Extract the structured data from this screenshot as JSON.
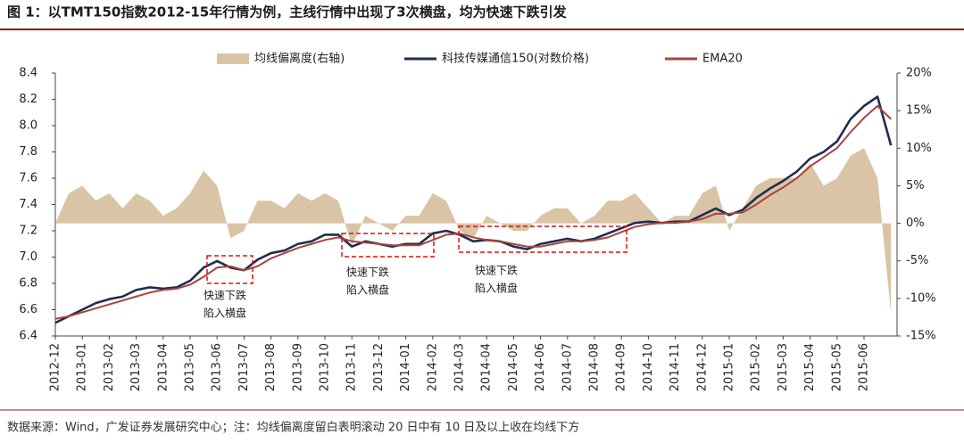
{
  "chart_data": {
    "type": "line",
    "title": "图 1：以TMT150指数2012-15年行情为例，主线行情中出现了3次横盘，均为快速下跌引发",
    "source": "数据来源：Wind，广发证券发展研究中心；注：均线偏离度留白表明滚动 20 日中有 10 日及以上收在均线下方",
    "categories": [
      "2012-12",
      null,
      "2013-01",
      null,
      "2013-02",
      null,
      "2013-03",
      null,
      "2013-04",
      null,
      "2013-05",
      null,
      "2013-06",
      null,
      "2013-07",
      null,
      "2013-08",
      null,
      "2013-09",
      null,
      "2013-10",
      null,
      "2013-11",
      null,
      "2013-12",
      null,
      "2014-01",
      null,
      "2014-02",
      null,
      "2014-03",
      null,
      "2014-04",
      null,
      "2014-05",
      null,
      "2014-06",
      null,
      "2014-07",
      null,
      "2014-08",
      null,
      "2014-09",
      null,
      "2014-10",
      null,
      "2014-11",
      null,
      "2014-12",
      null,
      "2015-01",
      null,
      "2015-02",
      null,
      "2015-03",
      null,
      "2015-04",
      null,
      "2015-05",
      null,
      "2015-06",
      null,
      null
    ],
    "series": [
      {
        "name": "均线偏离度(右轴)",
        "type": "area",
        "axis": "y2",
        "color": "#d9c4a5",
        "values": [
          0,
          4,
          5,
          3,
          4,
          2,
          4,
          3,
          1,
          2,
          4,
          7,
          5,
          -2,
          -1,
          3,
          3,
          2,
          4,
          3,
          4,
          3,
          -3,
          1,
          0,
          -1,
          1,
          1,
          4,
          3,
          -1,
          -2,
          1,
          0,
          -1,
          -1,
          1,
          2,
          2,
          0,
          1,
          3,
          3,
          4,
          2,
          0,
          1,
          1,
          4,
          5,
          -1,
          2,
          5,
          6,
          6,
          6,
          8,
          5,
          6,
          9,
          10,
          6,
          -12
        ]
      },
      {
        "name": "科技传媒通信150(对数价格)",
        "type": "line",
        "color": "#1f2d4e",
        "values": [
          6.5,
          6.55,
          6.6,
          6.65,
          6.68,
          6.7,
          6.75,
          6.77,
          6.76,
          6.77,
          6.82,
          6.92,
          6.97,
          6.92,
          6.9,
          6.98,
          7.03,
          7.05,
          7.1,
          7.12,
          7.17,
          7.17,
          7.08,
          7.12,
          7.1,
          7.08,
          7.1,
          7.1,
          7.18,
          7.2,
          7.17,
          7.12,
          7.13,
          7.12,
          7.08,
          7.06,
          7.1,
          7.12,
          7.14,
          7.12,
          7.14,
          7.18,
          7.22,
          7.26,
          7.27,
          7.26,
          7.27,
          7.27,
          7.32,
          7.37,
          7.32,
          7.36,
          7.45,
          7.52,
          7.58,
          7.65,
          7.75,
          7.8,
          7.88,
          8.05,
          8.15,
          8.22,
          7.85
        ]
      },
      {
        "name": "EMA20",
        "type": "line",
        "color": "#a8443d",
        "values": [
          6.53,
          6.55,
          6.58,
          6.61,
          6.64,
          6.67,
          6.7,
          6.73,
          6.75,
          6.76,
          6.79,
          6.85,
          6.92,
          6.93,
          6.9,
          6.93,
          6.99,
          7.03,
          7.07,
          7.1,
          7.13,
          7.15,
          7.12,
          7.11,
          7.1,
          7.09,
          7.09,
          7.09,
          7.13,
          7.17,
          7.18,
          7.15,
          7.13,
          7.12,
          7.1,
          7.08,
          7.08,
          7.1,
          7.12,
          7.12,
          7.13,
          7.15,
          7.19,
          7.23,
          7.25,
          7.26,
          7.26,
          7.27,
          7.29,
          7.33,
          7.33,
          7.34,
          7.4,
          7.47,
          7.53,
          7.6,
          7.69,
          7.76,
          7.83,
          7.95,
          8.06,
          8.15,
          8.05
        ]
      }
    ],
    "ylim": [
      6.4,
      8.4
    ],
    "yticks": [
      6.4,
      6.6,
      6.8,
      {
        "value": 7.0,
        "label": "7.0"
      },
      7.2,
      7.4,
      7.6,
      7.8,
      {
        "value": 8.0,
        "label": "8.0"
      },
      8.2,
      8.4
    ],
    "y2lim": [
      -15,
      20
    ],
    "y2ticks": [
      {
        "value": -15,
        "label": "-15%"
      },
      {
        "value": -10,
        "label": "-10%"
      },
      {
        "value": -5,
        "label": "-5%"
      },
      {
        "value": 0,
        "label": "0%"
      },
      {
        "value": 5,
        "label": "5%"
      },
      {
        "value": 10,
        "label": "10%"
      },
      {
        "value": 15,
        "label": "15%"
      },
      {
        "value": 20,
        "label": "20%"
      }
    ],
    "annotations": [
      [
        "快速下跌",
        "陷入横盘"
      ],
      [
        "快速下跌",
        "陷入横盘"
      ],
      [
        "快速下跌",
        "陷入横盘"
      ]
    ],
    "legend": "top"
  }
}
